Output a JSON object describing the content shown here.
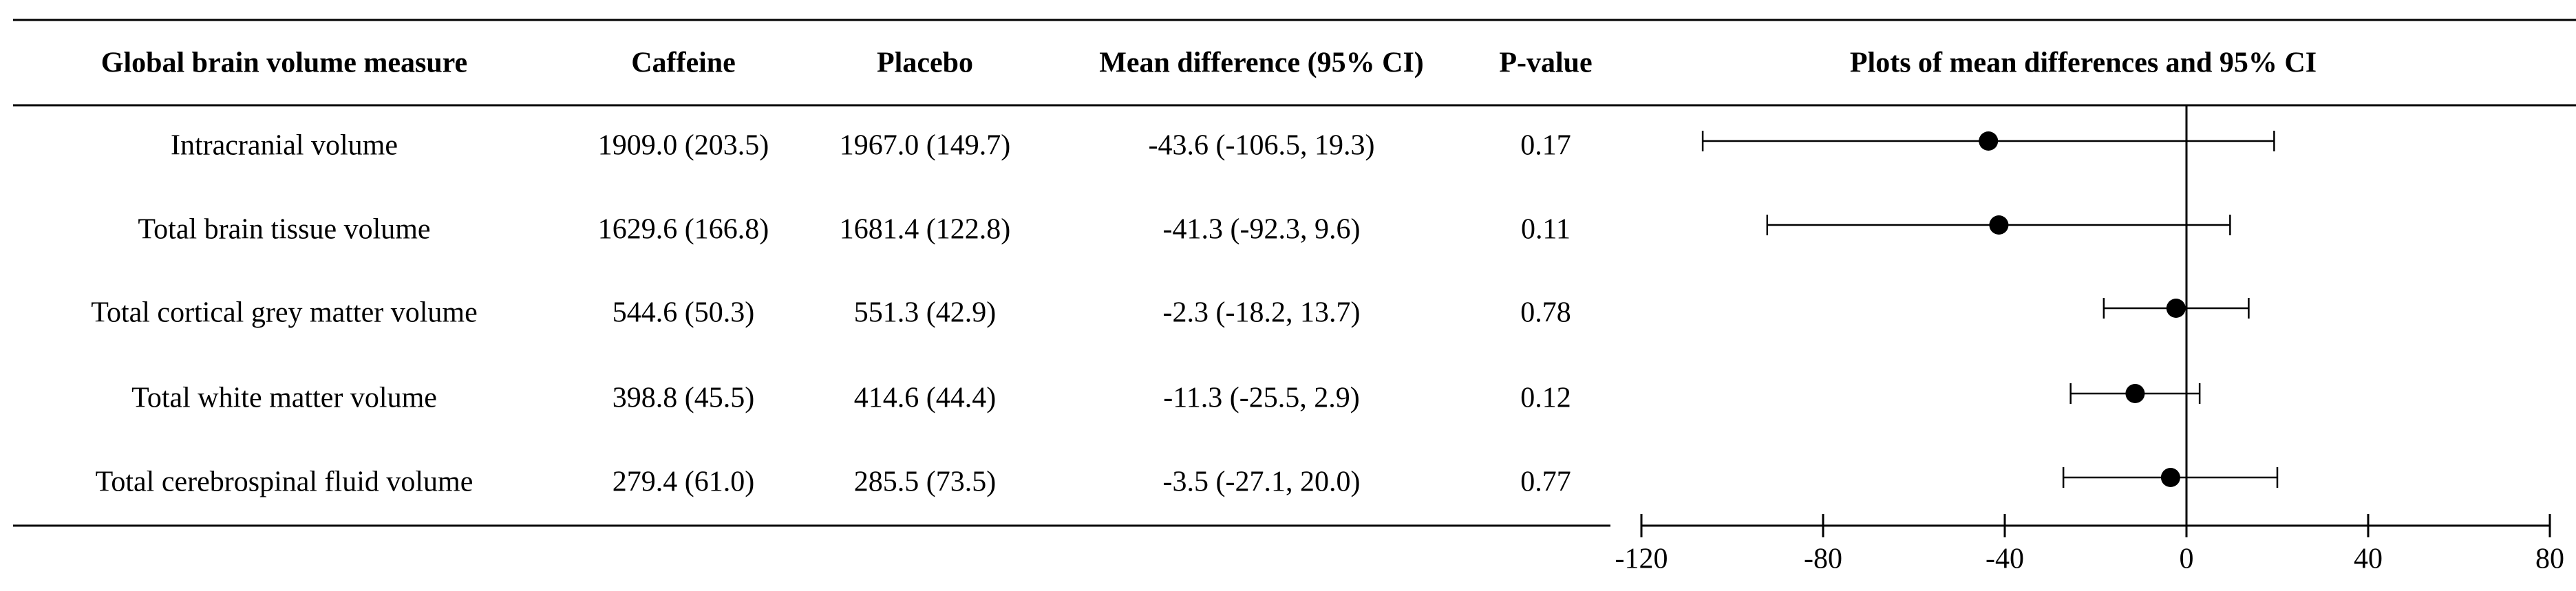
{
  "table": {
    "headers": [
      "Global brain volume measure",
      "Caffeine",
      "Placebo",
      "Mean difference (95% CI)",
      "P-value"
    ],
    "rows": [
      [
        "Intracranial volume",
        "1909.0 (203.5)",
        "1967.0 (149.7)",
        "-43.6 (-106.5, 19.3)",
        "0.17"
      ],
      [
        "Total brain tissue volume",
        "1629.6 (166.8)",
        "1681.4 (122.8)",
        "-41.3 (-92.3, 9.6)",
        "0.11"
      ],
      [
        "Total cortical grey matter volume",
        "544.6 (50.3)",
        "551.3 (42.9)",
        "-2.3 (-18.2, 13.7)",
        "0.78"
      ],
      [
        "Total white matter volume",
        "398.8 (45.5)",
        "414.6 (44.4)",
        "-11.3 (-25.5, 2.9)",
        "0.12"
      ],
      [
        "Total cerebrospinal fluid volume",
        "279.4 (61.0)",
        "285.5 (73.5)",
        "-3.5 (-27.1, 20.0)",
        "0.77"
      ]
    ]
  },
  "chart_data": {
    "type": "forest",
    "title": "Plots of mean differences and 95% CI",
    "values": [
      -43.6,
      -41.3,
      -2.3,
      -11.3,
      -3.5
    ],
    "ci_low": [
      -106.5,
      -92.3,
      -18.2,
      -25.5,
      -27.1
    ],
    "ci_high": [
      19.3,
      9.6,
      13.7,
      2.9,
      20.0
    ],
    "xlim": [
      -120,
      80
    ],
    "xticks": [
      -120,
      -80,
      -40,
      0,
      40,
      80
    ],
    "reference_line": 0,
    "color": "#000000"
  }
}
